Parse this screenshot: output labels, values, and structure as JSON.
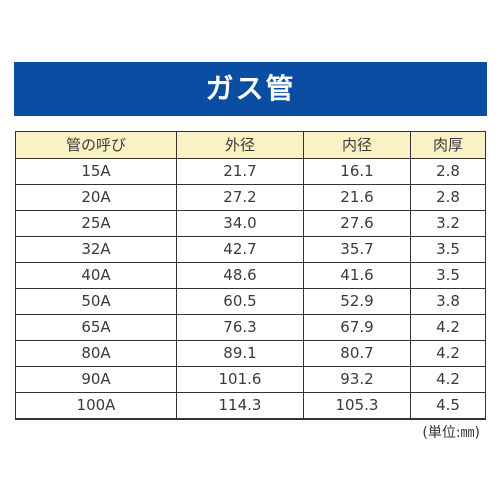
{
  "title": "ガス管",
  "colors": {
    "banner_background": "#0a4da3",
    "banner_text": "#ffffff",
    "header_background": "#faf2c4",
    "border": "#333333"
  },
  "table": {
    "headers": [
      "管の呼び",
      "外径",
      "内径",
      "肉厚"
    ],
    "rows": [
      [
        "15A",
        "21.7",
        "16.1",
        "2.8"
      ],
      [
        "20A",
        "27.2",
        "21.6",
        "2.8"
      ],
      [
        "25A",
        "34.0",
        "27.6",
        "3.2"
      ],
      [
        "32A",
        "42.7",
        "35.7",
        "3.5"
      ],
      [
        "40A",
        "48.6",
        "41.6",
        "3.5"
      ],
      [
        "50A",
        "60.5",
        "52.9",
        "3.8"
      ],
      [
        "65A",
        "76.3",
        "67.9",
        "4.2"
      ],
      [
        "80A",
        "89.1",
        "80.7",
        "4.2"
      ],
      [
        "90A",
        "101.6",
        "93.2",
        "4.2"
      ],
      [
        "100A",
        "114.3",
        "105.3",
        "4.5"
      ]
    ]
  },
  "unit_note": "(単位:㎜)"
}
